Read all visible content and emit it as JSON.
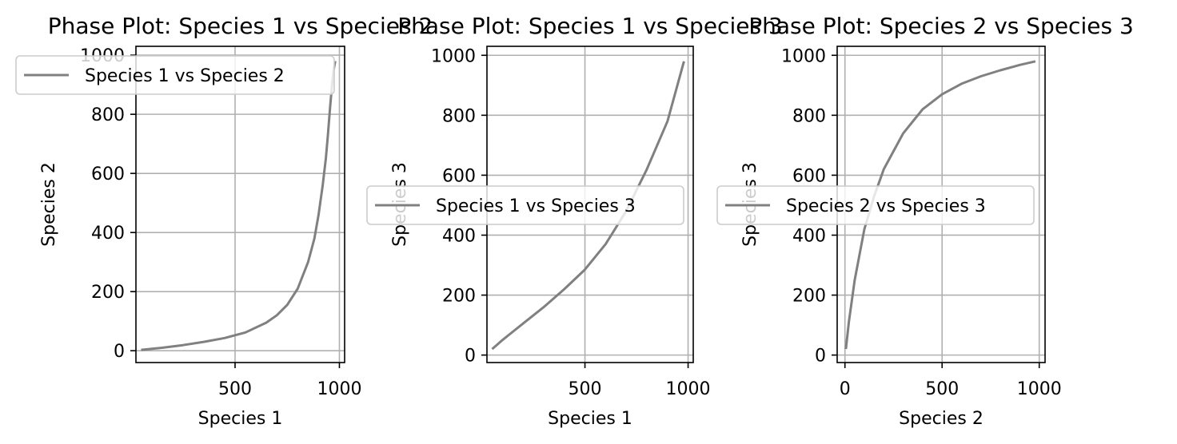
{
  "colors": {
    "series": "#808080",
    "grid": "#b0b0b0"
  },
  "chart_data": [
    {
      "type": "line",
      "title": "Phase Plot: Species 1 vs Species 2",
      "xlabel": "Species 1",
      "ylabel": "Species 2",
      "xlim": [
        25,
        1025
      ],
      "ylim": [
        -40,
        1030
      ],
      "xticks": [
        500,
        1000
      ],
      "yticks": [
        0,
        200,
        400,
        600,
        800,
        1000
      ],
      "grid": true,
      "legend_position": "upper left",
      "series": [
        {
          "name": "Species 1 vs Species 2",
          "x": [
            50,
            150,
            250,
            350,
            450,
            550,
            650,
            700,
            750,
            800,
            850,
            880,
            900,
            920,
            935,
            945,
            955,
            965,
            972,
            980
          ],
          "y": [
            3,
            10,
            19,
            30,
            43,
            62,
            95,
            120,
            155,
            210,
            300,
            380,
            460,
            560,
            650,
            730,
            820,
            900,
            950,
            980
          ]
        }
      ]
    },
    {
      "type": "line",
      "title": "Phase Plot: Species 1 vs Species 3",
      "xlabel": "Species 1",
      "ylabel": "Species 3",
      "xlim": [
        25,
        1025
      ],
      "ylim": [
        -25,
        1030
      ],
      "xticks": [
        500,
        1000
      ],
      "yticks": [
        0,
        200,
        400,
        600,
        800,
        1000
      ],
      "grid": true,
      "legend_position": "center",
      "series": [
        {
          "name": "Species 1 vs Species 3",
          "x": [
            50,
            100,
            200,
            300,
            400,
            500,
            600,
            700,
            800,
            900,
            980
          ],
          "y": [
            20,
            50,
            105,
            160,
            220,
            285,
            370,
            480,
            620,
            780,
            980
          ]
        }
      ]
    },
    {
      "type": "line",
      "title": "Phase Plot: Species 2 vs Species 3",
      "xlabel": "Species 2",
      "ylabel": "Species 3",
      "xlim": [
        -40,
        1030
      ],
      "ylim": [
        -25,
        1030
      ],
      "xticks": [
        0,
        500,
        1000
      ],
      "yticks": [
        0,
        200,
        400,
        600,
        800,
        1000
      ],
      "grid": true,
      "legend_position": "center",
      "series": [
        {
          "name": "Species 2 vs Species 3",
          "x": [
            5,
            20,
            50,
            100,
            150,
            200,
            300,
            400,
            500,
            600,
            700,
            800,
            900,
            980
          ],
          "y": [
            20,
            110,
            250,
            420,
            530,
            620,
            740,
            820,
            870,
            905,
            930,
            950,
            968,
            980
          ]
        }
      ]
    }
  ]
}
